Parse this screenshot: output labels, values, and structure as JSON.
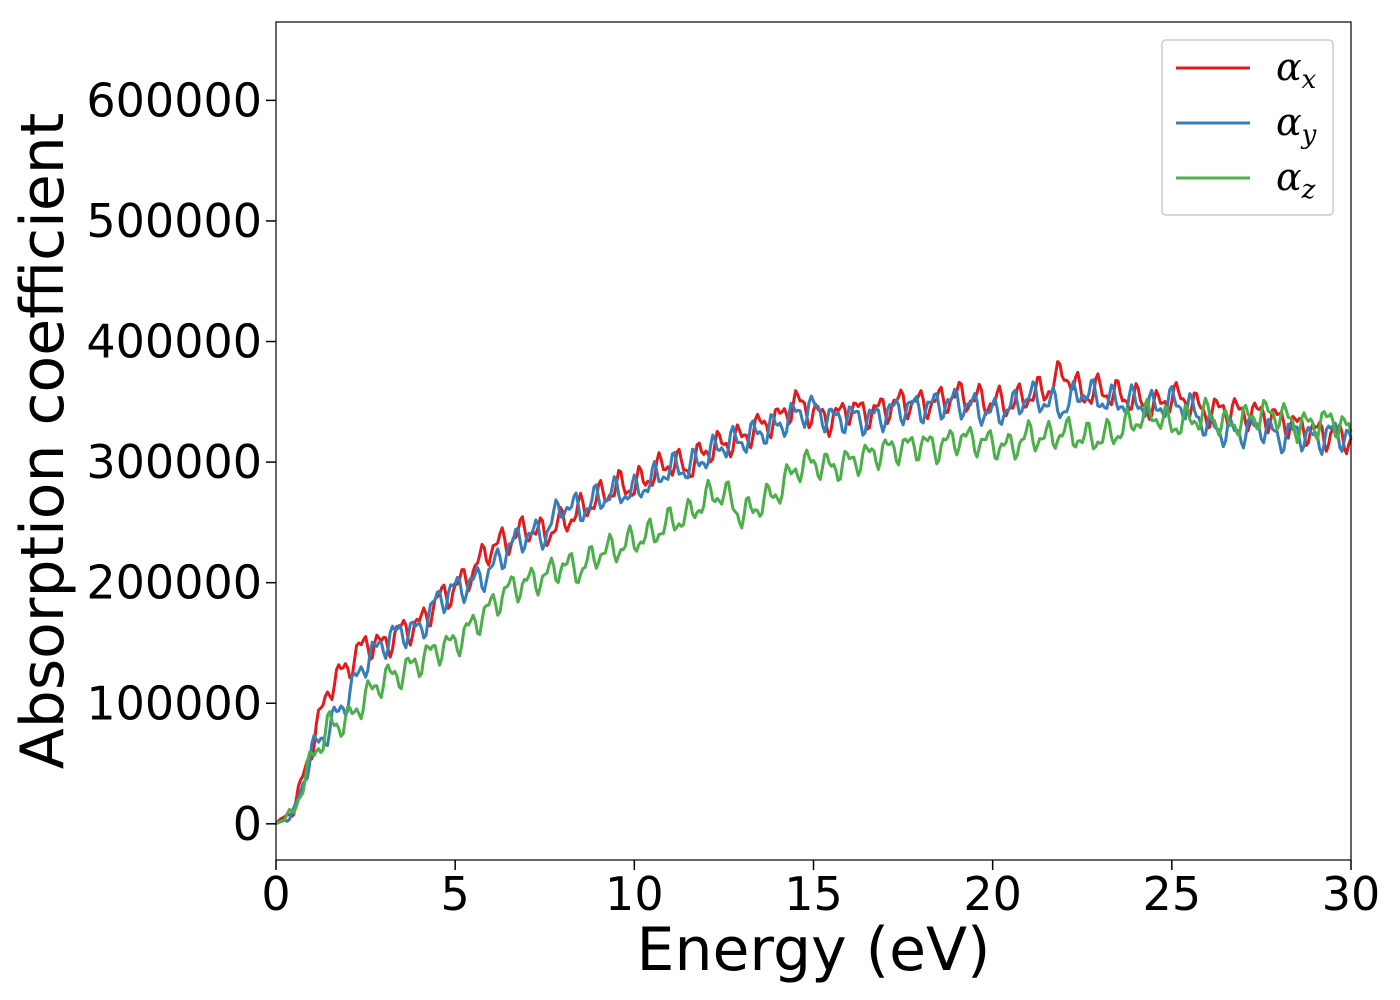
{
  "chart_data": {
    "type": "line",
    "xlabel": "Energy (eV)",
    "ylabel": "Absorption coefficient",
    "xlim": [
      0,
      30
    ],
    "ylim": [
      -30000,
      665000
    ],
    "xticks": [
      0,
      5,
      10,
      15,
      20,
      25,
      30
    ],
    "xtick_labels": [
      "0",
      "5",
      "10",
      "15",
      "20",
      "25",
      "30"
    ],
    "yticks": [
      0,
      100000,
      200000,
      300000,
      400000,
      500000,
      600000
    ],
    "ytick_labels": [
      "0",
      "100000",
      "200000",
      "300000",
      "400000",
      "500000",
      "600000"
    ],
    "grid": false,
    "legend_position": "top-right",
    "x": [
      0,
      0.5,
      1,
      1.5,
      2,
      2.5,
      3,
      3.5,
      4,
      4.5,
      5,
      5.5,
      6,
      6.5,
      7,
      7.5,
      8,
      8.5,
      9,
      9.5,
      10,
      10.5,
      11,
      11.5,
      12,
      12.5,
      13,
      13.5,
      14,
      14.5,
      15,
      15.5,
      16,
      16.5,
      17,
      17.5,
      18,
      18.5,
      19,
      19.5,
      20,
      20.5,
      21,
      21.5,
      22,
      22.5,
      23,
      23.5,
      24,
      24.5,
      25,
      25.5,
      26,
      26.5,
      27,
      27.5,
      28,
      28.5,
      29,
      29.5,
      30
    ],
    "series": [
      {
        "name": "α",
        "subscript": "x",
        "color": "#e41a1c",
        "values": [
          0,
          12000,
          65000,
          115000,
          130000,
          150000,
          148000,
          160000,
          165000,
          185000,
          195000,
          210000,
          230000,
          235000,
          245000,
          240000,
          250000,
          260000,
          270000,
          280000,
          280000,
          290000,
          300000,
          295000,
          310000,
          315000,
          320000,
          330000,
          335000,
          350000,
          340000,
          335000,
          345000,
          340000,
          345000,
          350000,
          348000,
          350000,
          355000,
          352000,
          350000,
          348000,
          355000,
          360000,
          375000,
          355000,
          360000,
          355000,
          352000,
          345000,
          355000,
          350000,
          340000,
          345000,
          340000,
          340000,
          335000,
          330000,
          325000,
          322000,
          320000
        ]
      },
      {
        "name": "α",
        "subscript": "y",
        "color": "#377eb8",
        "values": [
          0,
          8000,
          60000,
          80000,
          105000,
          135000,
          150000,
          160000,
          160000,
          185000,
          195000,
          200000,
          210000,
          230000,
          240000,
          240000,
          265000,
          260000,
          270000,
          275000,
          275000,
          285000,
          295000,
          295000,
          305000,
          315000,
          318000,
          325000,
          330000,
          340000,
          345000,
          335000,
          338000,
          335000,
          340000,
          345000,
          345000,
          348000,
          350000,
          345000,
          340000,
          345000,
          355000,
          350000,
          345000,
          360000,
          352000,
          350000,
          350000,
          345000,
          350000,
          345000,
          330000,
          325000,
          325000,
          330000,
          320000,
          325000,
          318000,
          325000,
          320000
        ]
      },
      {
        "name": "α",
        "subscript": "z",
        "color": "#4daf4a",
        "values": [
          0,
          10000,
          55000,
          82000,
          85000,
          105000,
          120000,
          125000,
          135000,
          145000,
          150000,
          165000,
          180000,
          195000,
          200000,
          205000,
          215000,
          210000,
          225000,
          228000,
          235000,
          240000,
          250000,
          255000,
          270000,
          275000,
          255000,
          265000,
          275000,
          295000,
          300000,
          295000,
          300000,
          305000,
          310000,
          312000,
          315000,
          312000,
          320000,
          318000,
          315000,
          312000,
          322000,
          320000,
          325000,
          320000,
          320000,
          325000,
          335000,
          340000,
          330000,
          335000,
          340000,
          330000,
          335000,
          340000,
          340000,
          330000,
          332000,
          335000,
          325000
        ]
      }
    ]
  }
}
